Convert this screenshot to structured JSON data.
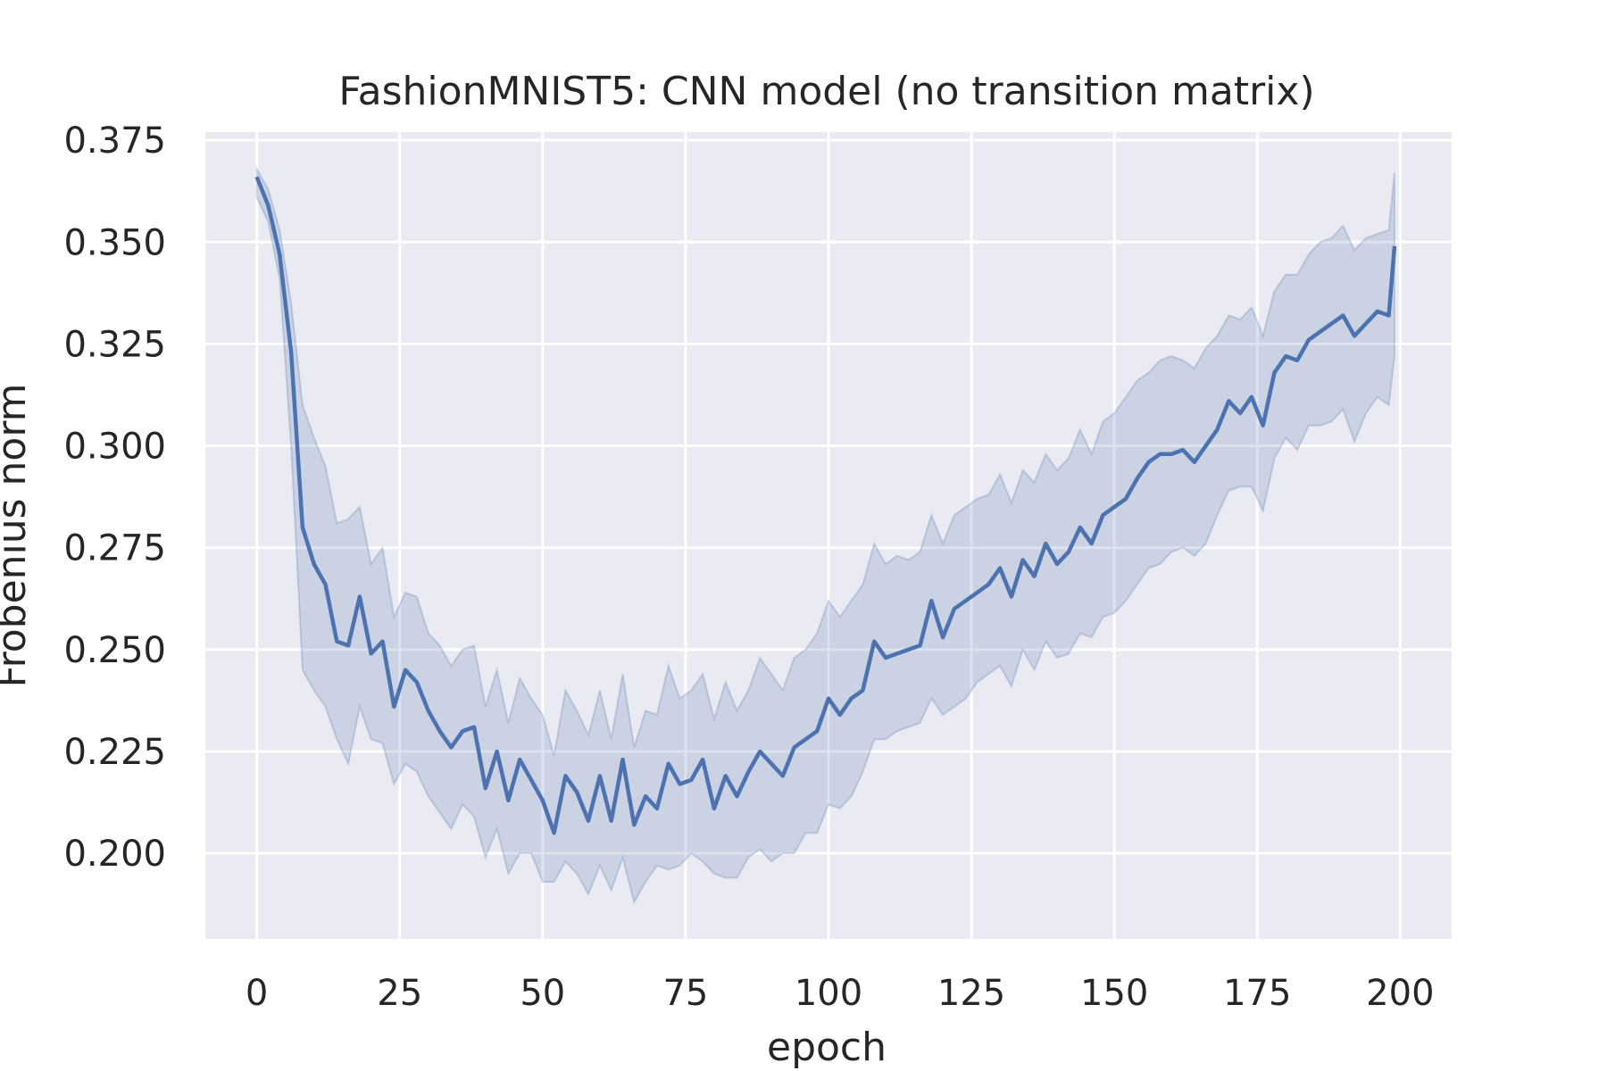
{
  "chart_data": {
    "type": "line",
    "title": "FashionMNIST5: CNN model (no transition matrix)",
    "xlabel": "epoch",
    "ylabel": "Frobenius norm",
    "xlim": [
      -9,
      209
    ],
    "ylim": [
      0.179,
      0.377
    ],
    "xticks": [
      0,
      25,
      50,
      75,
      100,
      125,
      150,
      175,
      200
    ],
    "yticks": [
      0.2,
      0.225,
      0.25,
      0.275,
      0.3,
      0.325,
      0.35,
      0.375
    ],
    "ytick_labels": [
      "0.200",
      "0.225",
      "0.250",
      "0.275",
      "0.300",
      "0.325",
      "0.350",
      "0.375"
    ],
    "grid": true,
    "legend": "none",
    "colors": {
      "line": "#4c72b0",
      "background": "#eaeaf2",
      "grid": "#ffffff"
    },
    "series": [
      {
        "x": [
          0,
          2,
          4,
          6,
          8,
          10,
          12,
          14,
          16,
          18,
          20,
          22,
          24,
          26,
          28,
          30,
          32,
          34,
          36,
          38,
          40,
          42,
          44,
          46,
          48,
          50,
          52,
          54,
          56,
          58,
          60,
          62,
          64,
          66,
          68,
          70,
          72,
          74,
          76,
          78,
          80,
          82,
          84,
          86,
          88,
          90,
          92,
          94,
          96,
          98,
          100,
          102,
          104,
          106,
          108,
          110,
          112,
          114,
          116,
          118,
          120,
          122,
          124,
          126,
          128,
          130,
          132,
          134,
          136,
          138,
          140,
          142,
          144,
          146,
          148,
          150,
          152,
          154,
          156,
          158,
          160,
          162,
          164,
          166,
          168,
          170,
          172,
          174,
          176,
          178,
          180,
          182,
          184,
          186,
          188,
          190,
          192,
          194,
          196,
          198,
          199
        ],
        "y": [
          0.366,
          0.359,
          0.347,
          0.323,
          0.28,
          0.271,
          0.266,
          0.252,
          0.251,
          0.263,
          0.249,
          0.252,
          0.236,
          0.245,
          0.242,
          0.235,
          0.23,
          0.226,
          0.23,
          0.231,
          0.216,
          0.225,
          0.213,
          0.223,
          0.218,
          0.213,
          0.205,
          0.219,
          0.215,
          0.208,
          0.219,
          0.208,
          0.223,
          0.207,
          0.214,
          0.211,
          0.222,
          0.217,
          0.218,
          0.223,
          0.211,
          0.219,
          0.214,
          0.22,
          0.225,
          0.222,
          0.219,
          0.226,
          0.228,
          0.23,
          0.238,
          0.234,
          0.238,
          0.24,
          0.252,
          0.248,
          0.249,
          0.25,
          0.251,
          0.262,
          0.253,
          0.26,
          0.262,
          0.264,
          0.266,
          0.27,
          0.263,
          0.272,
          0.268,
          0.276,
          0.271,
          0.274,
          0.28,
          0.276,
          0.283,
          0.285,
          0.287,
          0.292,
          0.296,
          0.298,
          0.298,
          0.299,
          0.296,
          0.3,
          0.304,
          0.311,
          0.308,
          0.312,
          0.305,
          0.318,
          0.322,
          0.321,
          0.326,
          0.328,
          0.33,
          0.332,
          0.327,
          0.33,
          0.333,
          0.332,
          0.349
        ],
        "lower": [
          0.361,
          0.355,
          0.341,
          0.3,
          0.245,
          0.24,
          0.236,
          0.228,
          0.222,
          0.236,
          0.228,
          0.227,
          0.217,
          0.222,
          0.22,
          0.214,
          0.21,
          0.206,
          0.212,
          0.209,
          0.199,
          0.206,
          0.195,
          0.2,
          0.2,
          0.193,
          0.193,
          0.198,
          0.195,
          0.19,
          0.197,
          0.191,
          0.199,
          0.188,
          0.193,
          0.197,
          0.196,
          0.197,
          0.2,
          0.198,
          0.195,
          0.194,
          0.194,
          0.199,
          0.201,
          0.198,
          0.2,
          0.2,
          0.205,
          0.205,
          0.212,
          0.211,
          0.214,
          0.22,
          0.228,
          0.228,
          0.23,
          0.231,
          0.232,
          0.238,
          0.234,
          0.236,
          0.238,
          0.242,
          0.244,
          0.246,
          0.241,
          0.25,
          0.245,
          0.252,
          0.248,
          0.249,
          0.254,
          0.253,
          0.258,
          0.259,
          0.262,
          0.266,
          0.27,
          0.271,
          0.274,
          0.275,
          0.273,
          0.276,
          0.283,
          0.289,
          0.29,
          0.29,
          0.284,
          0.297,
          0.302,
          0.299,
          0.305,
          0.305,
          0.306,
          0.309,
          0.301,
          0.308,
          0.312,
          0.31,
          0.322
        ],
        "upper": [
          0.368,
          0.363,
          0.353,
          0.335,
          0.31,
          0.302,
          0.295,
          0.281,
          0.282,
          0.285,
          0.271,
          0.275,
          0.258,
          0.264,
          0.263,
          0.254,
          0.251,
          0.246,
          0.25,
          0.251,
          0.236,
          0.245,
          0.232,
          0.243,
          0.238,
          0.234,
          0.224,
          0.24,
          0.235,
          0.229,
          0.24,
          0.228,
          0.244,
          0.226,
          0.235,
          0.234,
          0.246,
          0.238,
          0.24,
          0.244,
          0.233,
          0.242,
          0.235,
          0.24,
          0.248,
          0.244,
          0.24,
          0.248,
          0.25,
          0.254,
          0.262,
          0.258,
          0.262,
          0.266,
          0.276,
          0.271,
          0.273,
          0.272,
          0.274,
          0.283,
          0.276,
          0.283,
          0.285,
          0.287,
          0.288,
          0.293,
          0.286,
          0.294,
          0.291,
          0.298,
          0.294,
          0.297,
          0.304,
          0.298,
          0.306,
          0.308,
          0.312,
          0.316,
          0.318,
          0.321,
          0.322,
          0.321,
          0.319,
          0.324,
          0.327,
          0.332,
          0.331,
          0.334,
          0.327,
          0.338,
          0.342,
          0.342,
          0.347,
          0.35,
          0.351,
          0.354,
          0.348,
          0.351,
          0.352,
          0.353,
          0.367
        ]
      }
    ]
  }
}
